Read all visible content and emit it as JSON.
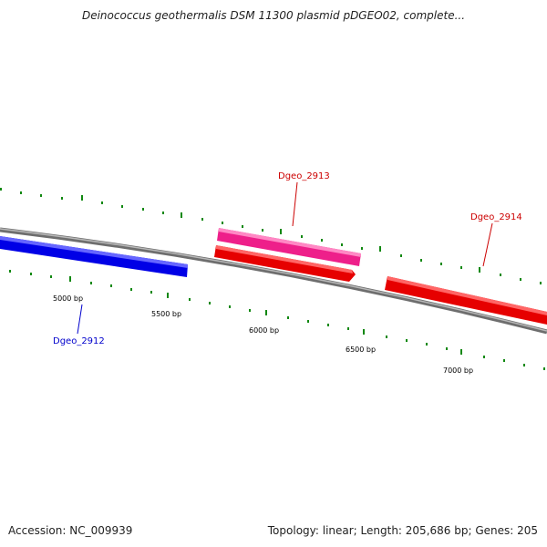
{
  "header": {
    "title": "Deinococcus geothermalis DSM 11300 plasmid pDGEO02, complete..."
  },
  "footer": {
    "accession": "Accession: NC_009939",
    "summary": "Topology: linear; Length: 205,686 bp; Genes: 205"
  },
  "map": {
    "ticks": [
      {
        "label": "5000 bp"
      },
      {
        "label": "5500 bp"
      },
      {
        "label": "6000 bp"
      },
      {
        "label": "6500 bp"
      },
      {
        "label": "7000 bp"
      }
    ],
    "genes": [
      {
        "name": "Dgeo_2912",
        "color": "#0000ee",
        "strand": "reverse"
      },
      {
        "name": "Dgeo_2913",
        "color": "#ee2288",
        "strand": "forward"
      },
      {
        "name": "Dgeo_2914",
        "color": "#dd0000",
        "strand": "forward"
      }
    ],
    "colors": {
      "backbone": "#888888",
      "tick": "#118811",
      "forward_label": "#cc0000",
      "reverse_label": "#0000cc"
    }
  }
}
